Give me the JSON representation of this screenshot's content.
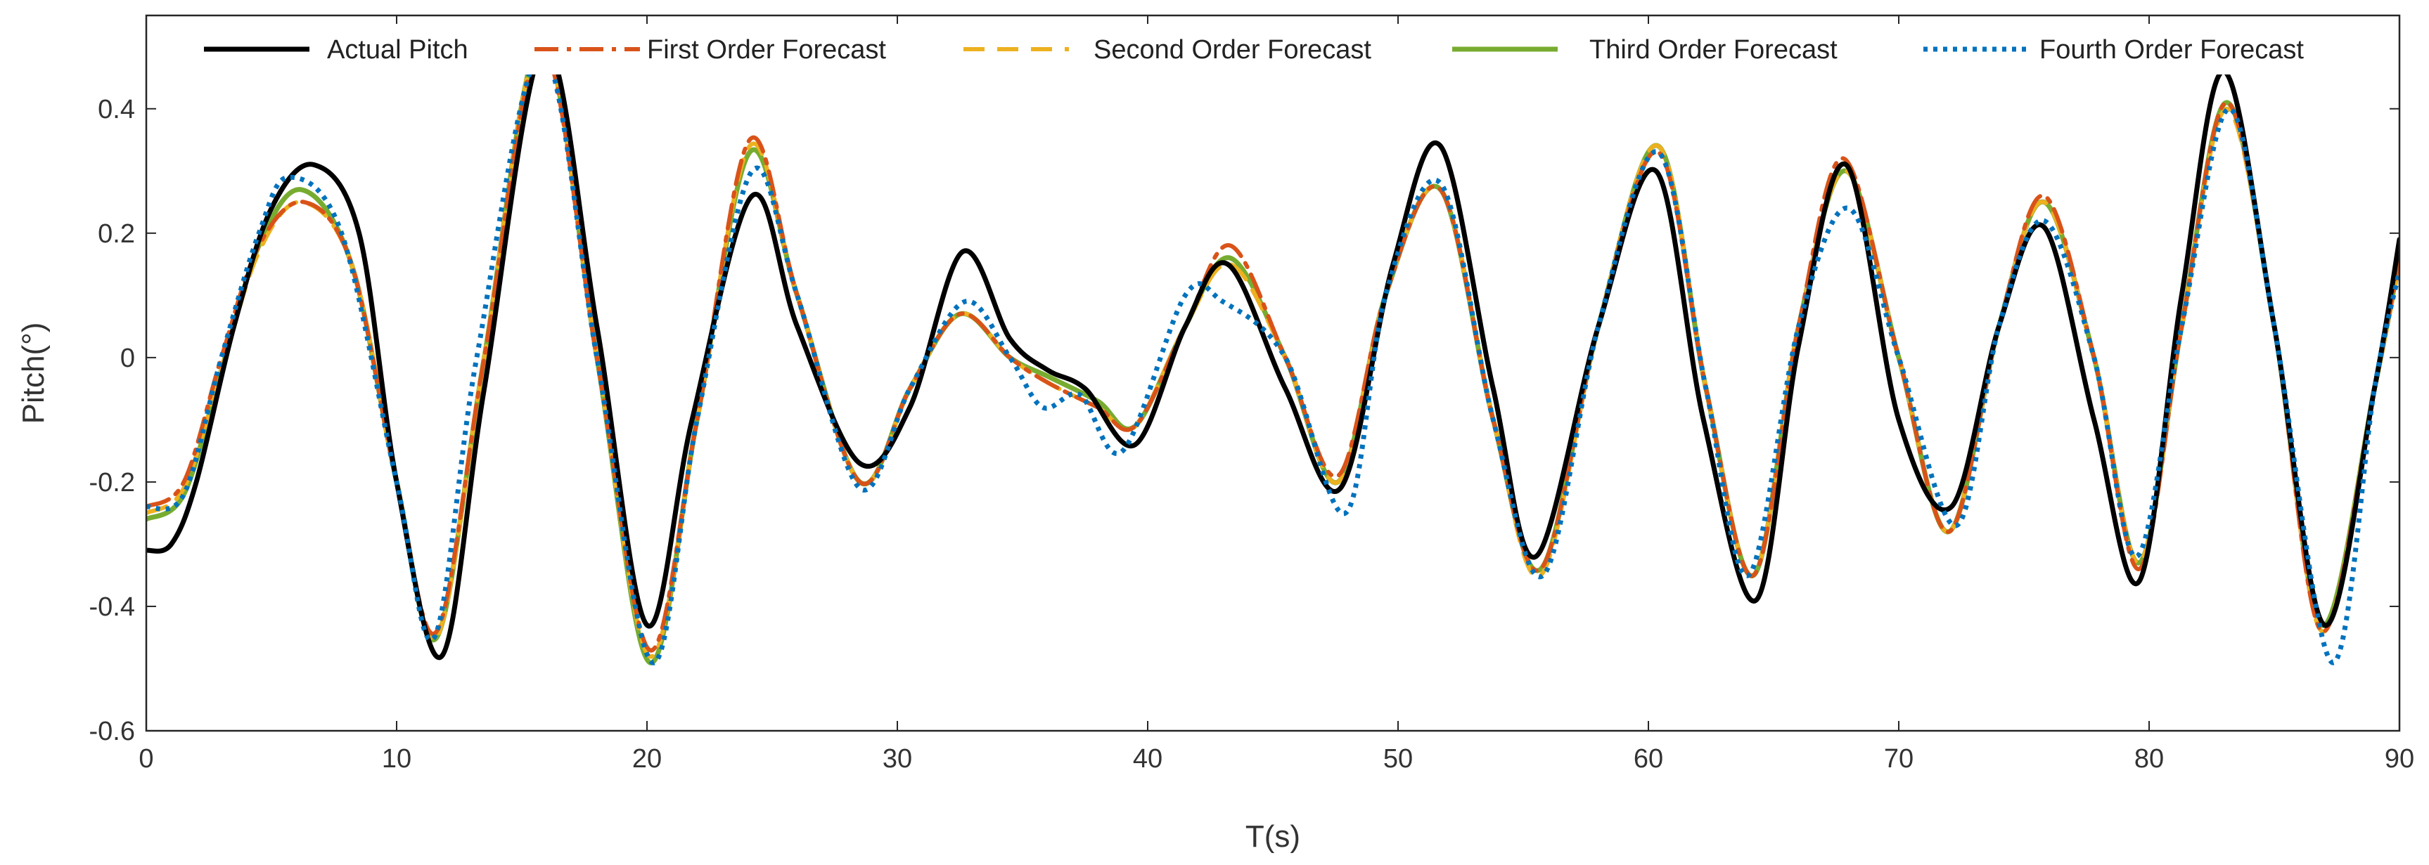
{
  "chart_data": {
    "type": "line",
    "title": "",
    "xlabel": "T(s)",
    "ylabel": "Pitch(°)",
    "xlim": [
      0,
      90
    ],
    "ylim": [
      -0.6,
      0.55
    ],
    "xticks": [
      0,
      10,
      20,
      30,
      40,
      50,
      60,
      70,
      80,
      90
    ],
    "yticks": [
      -0.6,
      -0.4,
      -0.2,
      0,
      0.2,
      0.4
    ],
    "xtick_labels": [
      "0",
      "10",
      "20",
      "30",
      "40",
      "50",
      "60",
      "70",
      "80",
      "90"
    ],
    "ytick_labels": [
      "-0.6",
      "-0.4",
      "-0.2",
      "0",
      "0.2",
      "0.4"
    ],
    "grid": false,
    "legend_position": "top",
    "series": [
      {
        "name": "Actual Pitch",
        "color": "#000000",
        "style": "solid",
        "points": [
          [
            0,
            -0.31
          ],
          [
            1,
            -0.3
          ],
          [
            2,
            -0.2
          ],
          [
            3.5,
            0.05
          ],
          [
            5,
            0.24
          ],
          [
            6.7,
            0.31
          ],
          [
            8.5,
            0.2
          ],
          [
            10,
            -0.2
          ],
          [
            11.8,
            -0.48
          ],
          [
            13.5,
            -0.05
          ],
          [
            15.9,
            0.5
          ],
          [
            18,
            0.05
          ],
          [
            20,
            -0.43
          ],
          [
            21.8,
            -0.1
          ],
          [
            24.2,
            0.26
          ],
          [
            26,
            0.05
          ],
          [
            28.5,
            -0.17
          ],
          [
            30.5,
            -0.08
          ],
          [
            32.6,
            0.17
          ],
          [
            34.5,
            0.03
          ],
          [
            36,
            -0.02
          ],
          [
            37.5,
            -0.05
          ],
          [
            39.5,
            -0.14
          ],
          [
            41.5,
            0.05
          ],
          [
            43.2,
            0.15
          ],
          [
            45.5,
            -0.05
          ],
          [
            47.7,
            -0.21
          ],
          [
            49.8,
            0.15
          ],
          [
            51.7,
            0.34
          ],
          [
            53.8,
            -0.05
          ],
          [
            55.5,
            -0.32
          ],
          [
            58,
            0.05
          ],
          [
            60.3,
            0.3
          ],
          [
            62.2,
            -0.1
          ],
          [
            64.3,
            -0.39
          ],
          [
            66,
            0.02
          ],
          [
            67.9,
            0.31
          ],
          [
            70,
            -0.1
          ],
          [
            72.1,
            -0.24
          ],
          [
            74,
            0.05
          ],
          [
            75.8,
            0.21
          ],
          [
            77.8,
            -0.1
          ],
          [
            79.6,
            -0.36
          ],
          [
            81.3,
            0.1
          ],
          [
            83,
            0.46
          ],
          [
            85,
            0.05
          ],
          [
            87,
            -0.43
          ],
          [
            89,
            -0.05
          ],
          [
            90,
            0.19
          ]
        ]
      },
      {
        "name": "First Order Forecast",
        "color": "#D95319",
        "style": "dashdot",
        "points": [
          [
            0,
            -0.24
          ],
          [
            1.5,
            -0.2
          ],
          [
            3,
            0.0
          ],
          [
            4.5,
            0.18
          ],
          [
            6.3,
            0.25
          ],
          [
            8.2,
            0.15
          ],
          [
            10,
            -0.2
          ],
          [
            11.6,
            -0.44
          ],
          [
            13.5,
            0.0
          ],
          [
            15.8,
            0.5
          ],
          [
            18,
            0.0
          ],
          [
            20.1,
            -0.47
          ],
          [
            22,
            -0.1
          ],
          [
            24.1,
            0.35
          ],
          [
            26,
            0.1
          ],
          [
            28.5,
            -0.2
          ],
          [
            30.5,
            -0.05
          ],
          [
            32.5,
            0.07
          ],
          [
            34.5,
            0.0
          ],
          [
            36,
            -0.04
          ],
          [
            38,
            -0.08
          ],
          [
            39.5,
            -0.11
          ],
          [
            41.5,
            0.05
          ],
          [
            43.3,
            0.18
          ],
          [
            45.5,
            0.0
          ],
          [
            47.6,
            -0.19
          ],
          [
            49.5,
            0.1
          ],
          [
            51.7,
            0.27
          ],
          [
            53.8,
            -0.1
          ],
          [
            55.7,
            -0.34
          ],
          [
            58,
            0.05
          ],
          [
            60.4,
            0.33
          ],
          [
            62.3,
            -0.05
          ],
          [
            64.2,
            -0.35
          ],
          [
            66,
            0.05
          ],
          [
            67.8,
            0.32
          ],
          [
            70,
            0.0
          ],
          [
            72,
            -0.28
          ],
          [
            74,
            0.05
          ],
          [
            75.8,
            0.26
          ],
          [
            77.8,
            0.0
          ],
          [
            79.6,
            -0.34
          ],
          [
            81.3,
            0.05
          ],
          [
            83.1,
            0.41
          ],
          [
            85,
            0.05
          ],
          [
            86.9,
            -0.44
          ],
          [
            89,
            -0.05
          ],
          [
            90,
            0.16
          ]
        ]
      },
      {
        "name": "Second Order Forecast",
        "color": "#EDB120",
        "style": "dashed",
        "points": [
          [
            0,
            -0.25
          ],
          [
            1.5,
            -0.21
          ],
          [
            3,
            -0.02
          ],
          [
            4.5,
            0.17
          ],
          [
            6.2,
            0.25
          ],
          [
            8.2,
            0.15
          ],
          [
            10,
            -0.2
          ],
          [
            11.6,
            -0.45
          ],
          [
            13.5,
            0.0
          ],
          [
            15.8,
            0.51
          ],
          [
            18,
            0.0
          ],
          [
            20.1,
            -0.48
          ],
          [
            22,
            -0.1
          ],
          [
            24.1,
            0.34
          ],
          [
            26,
            0.1
          ],
          [
            28.5,
            -0.2
          ],
          [
            30.5,
            -0.05
          ],
          [
            32.5,
            0.07
          ],
          [
            34.5,
            0.0
          ],
          [
            36,
            -0.04
          ],
          [
            38,
            -0.08
          ],
          [
            39.5,
            -0.11
          ],
          [
            41.5,
            0.05
          ],
          [
            43.3,
            0.15
          ],
          [
            45.5,
            0.0
          ],
          [
            47.6,
            -0.2
          ],
          [
            49.5,
            0.1
          ],
          [
            51.7,
            0.27
          ],
          [
            53.8,
            -0.1
          ],
          [
            55.7,
            -0.35
          ],
          [
            58,
            0.05
          ],
          [
            60.4,
            0.34
          ],
          [
            62.3,
            -0.05
          ],
          [
            64.2,
            -0.35
          ],
          [
            66,
            0.05
          ],
          [
            67.9,
            0.3
          ],
          [
            70,
            0.0
          ],
          [
            72,
            -0.28
          ],
          [
            74,
            0.05
          ],
          [
            75.8,
            0.25
          ],
          [
            77.8,
            0.0
          ],
          [
            79.6,
            -0.33
          ],
          [
            81.3,
            0.05
          ],
          [
            83.1,
            0.4
          ],
          [
            85,
            0.05
          ],
          [
            86.9,
            -0.44
          ],
          [
            89,
            -0.05
          ],
          [
            90,
            0.15
          ]
        ]
      },
      {
        "name": "Third Order Forecast",
        "color": "#77AC30",
        "style": "solid",
        "points": [
          [
            0,
            -0.26
          ],
          [
            1.5,
            -0.22
          ],
          [
            3,
            -0.02
          ],
          [
            4.5,
            0.18
          ],
          [
            6.2,
            0.27
          ],
          [
            8.2,
            0.15
          ],
          [
            10,
            -0.2
          ],
          [
            11.6,
            -0.45
          ],
          [
            13.5,
            0.0
          ],
          [
            15.8,
            0.51
          ],
          [
            18,
            0.0
          ],
          [
            20.1,
            -0.49
          ],
          [
            22,
            -0.1
          ],
          [
            24.1,
            0.33
          ],
          [
            26,
            0.1
          ],
          [
            28.5,
            -0.2
          ],
          [
            30.5,
            -0.05
          ],
          [
            32.5,
            0.07
          ],
          [
            34.5,
            0.0
          ],
          [
            36,
            -0.03
          ],
          [
            38,
            -0.07
          ],
          [
            39.5,
            -0.11
          ],
          [
            41.5,
            0.05
          ],
          [
            43.3,
            0.16
          ],
          [
            45.5,
            0.0
          ],
          [
            47.6,
            -0.2
          ],
          [
            49.5,
            0.1
          ],
          [
            51.7,
            0.27
          ],
          [
            53.8,
            -0.1
          ],
          [
            55.7,
            -0.34
          ],
          [
            58,
            0.05
          ],
          [
            60.4,
            0.34
          ],
          [
            62.3,
            -0.05
          ],
          [
            64.2,
            -0.35
          ],
          [
            66,
            0.05
          ],
          [
            67.9,
            0.3
          ],
          [
            70,
            0.0
          ],
          [
            72,
            -0.28
          ],
          [
            74,
            0.05
          ],
          [
            75.8,
            0.25
          ],
          [
            77.8,
            0.0
          ],
          [
            79.6,
            -0.33
          ],
          [
            81.3,
            0.05
          ],
          [
            83.1,
            0.41
          ],
          [
            85,
            0.05
          ],
          [
            86.9,
            -0.43
          ],
          [
            89,
            -0.05
          ],
          [
            90,
            0.16
          ]
        ]
      },
      {
        "name": "Fourth Order Forecast",
        "color": "#0072BD",
        "style": "dotted",
        "points": [
          [
            0,
            -0.24
          ],
          [
            1.5,
            -0.22
          ],
          [
            3,
            0.0
          ],
          [
            4.5,
            0.2
          ],
          [
            5.7,
            0.29
          ],
          [
            7.8,
            0.2
          ],
          [
            10,
            -0.2
          ],
          [
            11.5,
            -0.45
          ],
          [
            13.2,
            0.0
          ],
          [
            15.8,
            0.49
          ],
          [
            18,
            0.0
          ],
          [
            20.2,
            -0.49
          ],
          [
            22,
            -0.1
          ],
          [
            24.2,
            0.3
          ],
          [
            26,
            0.1
          ],
          [
            28.5,
            -0.21
          ],
          [
            30.5,
            -0.05
          ],
          [
            32.7,
            0.09
          ],
          [
            34.5,
            0.0
          ],
          [
            35.8,
            -0.08
          ],
          [
            37.3,
            -0.06
          ],
          [
            39,
            -0.15
          ],
          [
            41.5,
            0.1
          ],
          [
            43,
            0.09
          ],
          [
            45.5,
            0.0
          ],
          [
            47.9,
            -0.25
          ],
          [
            49.5,
            0.1
          ],
          [
            51.7,
            0.28
          ],
          [
            53.8,
            -0.1
          ],
          [
            55.8,
            -0.35
          ],
          [
            58,
            0.05
          ],
          [
            60.4,
            0.33
          ],
          [
            62.3,
            -0.05
          ],
          [
            64,
            -0.35
          ],
          [
            66,
            0.05
          ],
          [
            68,
            0.24
          ],
          [
            70,
            0.0
          ],
          [
            72.3,
            -0.27
          ],
          [
            74,
            0.05
          ],
          [
            75.8,
            0.22
          ],
          [
            77.8,
            0.0
          ],
          [
            79.5,
            -0.32
          ],
          [
            81.3,
            0.05
          ],
          [
            83.2,
            0.4
          ],
          [
            85,
            0.05
          ],
          [
            87.3,
            -0.49
          ],
          [
            89,
            -0.05
          ],
          [
            90,
            0.14
          ]
        ]
      }
    ]
  }
}
